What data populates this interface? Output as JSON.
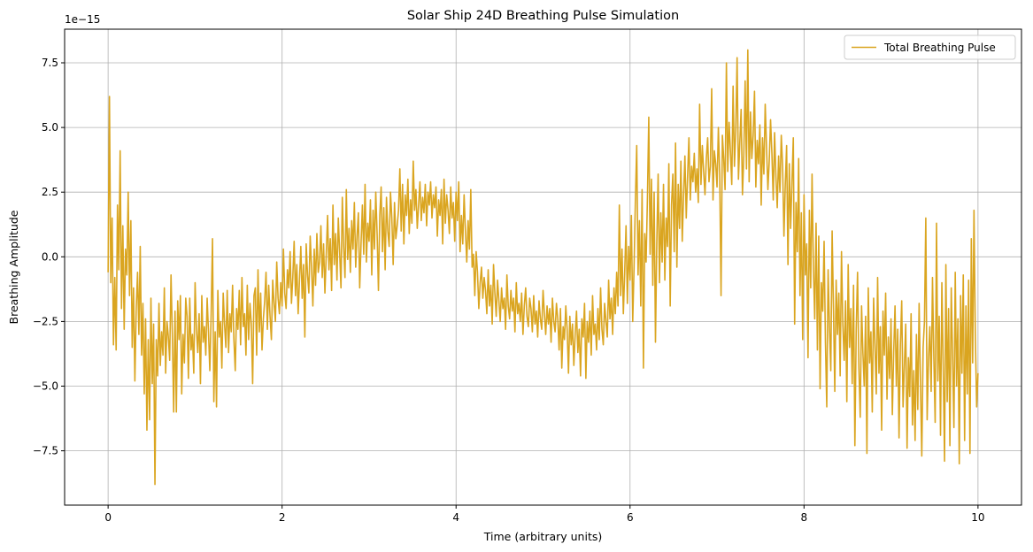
{
  "chart_data": {
    "type": "line",
    "title": "Solar Ship 24D Breathing Pulse Simulation",
    "xlabel": "Time (arbitrary units)",
    "ylabel": "Breathing Amplitude",
    "y_offset_text": "1e−15",
    "y_scale": 1e-15,
    "xlim": [
      -0.5,
      10.5
    ],
    "ylim": [
      -9.6,
      8.8
    ],
    "x_ticks": [
      0,
      2,
      4,
      6,
      8,
      10
    ],
    "x_tick_labels": [
      "0",
      "2",
      "4",
      "6",
      "8",
      "10"
    ],
    "y_ticks": [
      -7.5,
      -5.0,
      -2.5,
      0.0,
      2.5,
      5.0,
      7.5
    ],
    "y_tick_labels": [
      "−7.5",
      "−5.0",
      "−2.5",
      "0.0",
      "2.5",
      "5.0",
      "7.5"
    ],
    "grid": true,
    "legend_position": "top-right",
    "series": [
      {
        "name": "Total Breathing Pulse",
        "color": "#DAA520",
        "x_start": 0,
        "x_end": 10,
        "values": [
          -0.6,
          6.2,
          -1.0,
          1.5,
          -3.4,
          -0.8,
          -3.6,
          2.0,
          -0.5,
          4.1,
          -2.0,
          1.2,
          -2.8,
          0.3,
          -0.7,
          2.5,
          -1.5,
          1.4,
          -3.5,
          -1.2,
          -4.8,
          -2.0,
          -0.6,
          -3.0,
          0.4,
          -3.8,
          -1.8,
          -5.3,
          -2.4,
          -6.7,
          -3.2,
          -6.3,
          -1.6,
          -4.9,
          -2.6,
          -8.8,
          -3.2,
          -4.6,
          -1.8,
          -4.2,
          -2.9,
          -3.8,
          -1.2,
          -4.5,
          -2.5,
          -3.1,
          -4.0,
          -0.7,
          -3.0,
          -6.0,
          -2.1,
          -6.0,
          -1.7,
          -3.2,
          -1.5,
          -5.3,
          -3.0,
          -4.1,
          -1.6,
          -2.3,
          -4.7,
          -1.6,
          -3.6,
          -3.0,
          -4.5,
          -1.0,
          -2.8,
          -3.7,
          -2.2,
          -4.9,
          -1.5,
          -3.3,
          -2.7,
          -3.8,
          -1.6,
          -2.9,
          -4.4,
          -2.2,
          0.7,
          -5.6,
          -2.9,
          -5.8,
          -1.3,
          -3.1,
          -2.5,
          -4.3,
          -1.4,
          -2.6,
          -3.5,
          -1.3,
          -3.7,
          -2.2,
          -2.9,
          -1.1,
          -3.2,
          -4.4,
          -2.0,
          -2.8,
          -1.3,
          -3.4,
          -0.8,
          -2.7,
          -2.2,
          -3.8,
          -1.1,
          -3.2,
          -1.8,
          -2.6,
          -4.9,
          -1.5,
          -1.2,
          -3.8,
          -0.5,
          -2.9,
          -1.4,
          -3.6,
          -2.4,
          -1.7,
          -0.6,
          -2.8,
          -1.1,
          -2.3,
          -3.2,
          -0.9,
          -1.8,
          -2.5,
          -0.2,
          -1.6,
          -2.2,
          -1.0,
          -1.9,
          0.3,
          -1.4,
          -2.0,
          -0.5,
          -1.2,
          0.2,
          -1.8,
          -0.8,
          0.6,
          -1.5,
          -0.3,
          -2.2,
          -0.9,
          0.4,
          -1.6,
          -0.3,
          -3.1,
          0.5,
          -0.7,
          -1.4,
          0.8,
          -0.4,
          -1.9,
          0.3,
          -1.1,
          0.9,
          -0.6,
          -0.2,
          1.2,
          -0.8,
          0.5,
          -1.4,
          0.1,
          1.6,
          -0.5,
          0.7,
          -1.3,
          2.0,
          -0.3,
          0.9,
          -0.9,
          1.5,
          0.2,
          -1.2,
          2.3,
          0.4,
          -0.8,
          2.6,
          -0.1,
          1.1,
          -0.6,
          1.4,
          0.3,
          2.1,
          -0.4,
          0.8,
          1.7,
          -1.2,
          0.5,
          2.0,
          0.1,
          2.8,
          -0.2,
          1.3,
          0.6,
          2.2,
          -0.7,
          1.8,
          0.3,
          2.5,
          0.9,
          -1.3,
          1.6,
          2.7,
          0.2,
          1.9,
          -0.5,
          2.3,
          1.0,
          0.4,
          2.5,
          1.5,
          -0.3,
          2.1,
          0.7,
          1.2,
          1.8,
          3.4,
          1.0,
          2.8,
          0.5,
          2.4,
          1.6,
          3.0,
          0.9,
          2.2,
          1.3,
          3.7,
          1.8,
          2.6,
          1.1,
          2.0,
          2.9,
          1.4,
          2.3,
          1.7,
          2.8,
          1.2,
          2.5,
          2.0,
          2.9,
          1.5,
          2.4,
          1.9,
          2.7,
          0.8,
          2.2,
          1.6,
          2.6,
          0.5,
          3.0,
          1.3,
          2.4,
          1.8,
          0.9,
          2.7,
          1.5,
          2.1,
          0.6,
          2.5,
          1.4,
          2.9,
          0.2,
          1.6,
          0.5,
          2.4,
          1.0,
          -0.2,
          1.4,
          0.3,
          2.6,
          -0.4,
          0.1,
          -1.5,
          0.2,
          -0.6,
          -2.0,
          -1.0,
          -0.4,
          -1.6,
          -0.8,
          -1.3,
          -2.2,
          -0.5,
          -1.9,
          -1.1,
          -2.6,
          -0.3,
          -1.4,
          -2.3,
          -0.9,
          -1.7,
          -2.5,
          -1.2,
          -2.0,
          -1.6,
          -2.8,
          -0.7,
          -1.9,
          -2.4,
          -1.3,
          -2.1,
          -1.6,
          -2.9,
          -1.0,
          -2.2,
          -1.8,
          -2.5,
          -1.4,
          -3.0,
          -1.9,
          -1.2,
          -2.3,
          -2.7,
          -1.6,
          -2.0,
          -2.9,
          -1.5,
          -2.6,
          -2.1,
          -3.1,
          -1.7,
          -2.4,
          -2.8,
          -1.3,
          -2.2,
          -3.0,
          -1.9,
          -2.6,
          -2.0,
          -3.3,
          -1.6,
          -2.5,
          -2.9,
          -1.8,
          -2.4,
          -3.6,
          -2.0,
          -4.3,
          -2.7,
          -3.2,
          -1.9,
          -2.8,
          -4.5,
          -2.3,
          -3.4,
          -2.6,
          -4.2,
          -3.0,
          -2.1,
          -3.7,
          -2.8,
          -4.6,
          -2.4,
          -3.1,
          -1.8,
          -4.7,
          -2.5,
          -3.3,
          -2.1,
          -3.8,
          -1.5,
          -3.0,
          -2.6,
          -3.6,
          -2.0,
          -3.2,
          -1.2,
          -2.8,
          -3.4,
          -1.8,
          -2.5,
          -3.1,
          -0.9,
          -2.4,
          -1.6,
          -3.0,
          -1.2,
          -2.2,
          -0.6,
          -1.9,
          2.0,
          -1.5,
          0.3,
          -2.2,
          -0.6,
          1.2,
          -1.8,
          0.4,
          -0.9,
          1.6,
          -2.5,
          -0.4,
          2.2,
          4.3,
          -0.7,
          1.4,
          -1.9,
          2.6,
          -4.3,
          0.9,
          -0.2,
          2.3,
          5.4,
          0.1,
          3.0,
          -1.1,
          2.5,
          -3.3,
          0.6,
          3.2,
          -1.0,
          1.7,
          -0.2,
          2.8,
          -0.9,
          1.5,
          0.4,
          3.6,
          -1.9,
          2.0,
          3.2,
          0.2,
          4.4,
          -0.4,
          2.8,
          1.1,
          3.7,
          0.6,
          2.4,
          3.9,
          1.5,
          3.1,
          4.6,
          2.2,
          3.5,
          2.9,
          4.0,
          2.5,
          3.4,
          2.1,
          5.9,
          2.8,
          4.3,
          3.3,
          2.4,
          3.8,
          4.6,
          2.9,
          3.5,
          6.5,
          2.2,
          4.1,
          3.6,
          2.7,
          5.0,
          3.2,
          -1.5,
          4.7,
          3.8,
          2.6,
          7.5,
          3.3,
          5.2,
          4.1,
          2.8,
          6.6,
          3.5,
          4.9,
          7.7,
          3.0,
          4.4,
          5.7,
          2.4,
          3.9,
          6.8,
          3.4,
          8.0,
          2.9,
          5.6,
          3.8,
          4.7,
          6.4,
          2.7,
          4.5,
          3.6,
          5.1,
          2.0,
          4.6,
          3.2,
          5.9,
          4.2,
          2.6,
          3.7,
          5.3,
          4.0,
          2.2,
          4.8,
          3.1,
          1.9,
          3.9,
          2.5,
          4.7,
          3.5,
          0.8,
          2.8,
          4.3,
          -0.3,
          3.6,
          1.1,
          2.9,
          4.6,
          -2.6,
          2.1,
          0.2,
          3.8,
          -1.5,
          1.7,
          -3.2,
          2.4,
          -0.7,
          0.5,
          -3.9,
          1.8,
          -1.2,
          3.2,
          -0.4,
          -2.4,
          1.3,
          -3.6,
          0.8,
          -5.1,
          -1.0,
          -2.1,
          0.6,
          -3.3,
          -5.8,
          -0.5,
          -2.7,
          -4.4,
          1.0,
          -2.0,
          -5.2,
          -0.9,
          -3.0,
          -1.4,
          -4.6,
          0.2,
          -2.6,
          -4.0,
          -1.7,
          -5.6,
          -0.3,
          -3.5,
          -2.0,
          -4.9,
          -1.1,
          -7.3,
          -2.8,
          -0.6,
          -4.3,
          -6.2,
          -1.9,
          -3.7,
          -5.0,
          -2.3,
          -7.6,
          -1.2,
          -4.1,
          -2.9,
          -6.0,
          -1.6,
          -3.4,
          -5.3,
          -0.8,
          -4.5,
          -2.7,
          -6.7,
          -2.1,
          -3.8,
          -1.4,
          -5.5,
          -3.1,
          -4.7,
          -2.4,
          -6.1,
          -3.7,
          -1.9,
          -5.0,
          -2.8,
          -7.0,
          -3.4,
          -1.7,
          -5.8,
          -4.2,
          -2.6,
          -7.4,
          -3.9,
          -5.4,
          -2.2,
          -6.5,
          -4.4,
          -7.1,
          -3.0,
          -5.9,
          -1.8,
          -4.8,
          -7.7,
          -3.5,
          -2.5,
          1.5,
          -6.3,
          -4.0,
          -2.7,
          -5.2,
          -0.8,
          -3.9,
          -6.4,
          1.3,
          -4.8,
          -2.3,
          -6.9,
          -1.0,
          -4.2,
          -7.9,
          -0.3,
          -5.6,
          -2.0,
          -7.3,
          -1.2,
          -3.8,
          -6.6,
          -0.6,
          -5.0,
          -2.4,
          -8.0,
          -1.5,
          -4.5,
          -0.7,
          -7.1,
          -1.9,
          -5.3,
          -0.9,
          -7.6,
          0.7,
          -4.1,
          1.8,
          -3.0,
          -5.8,
          -4.5
        ]
      }
    ]
  }
}
